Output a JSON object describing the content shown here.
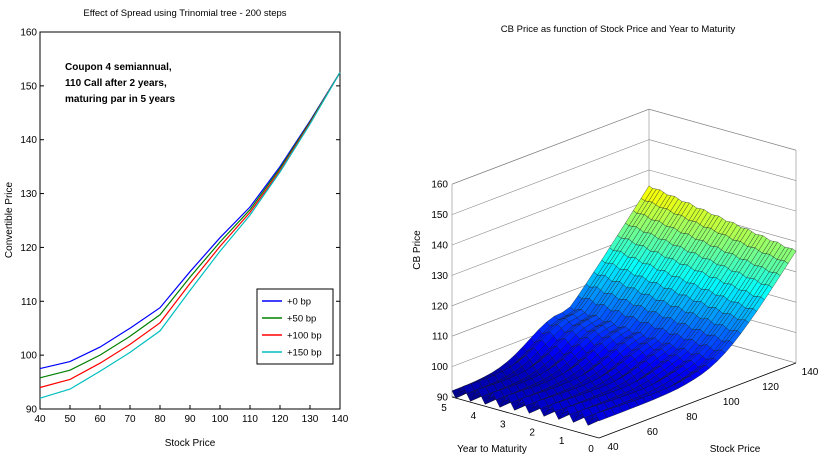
{
  "chart_data": [
    {
      "type": "line",
      "title": "Effect of Spread using Trinomial tree - 200 steps",
      "xlabel": "Stock Price",
      "ylabel": "Convertible Price",
      "xlim": [
        40,
        140
      ],
      "ylim": [
        90,
        160
      ],
      "xticks": [
        "40",
        "50",
        "60",
        "70",
        "80",
        "90",
        "100",
        "110",
        "120",
        "130",
        "140"
      ],
      "yticks": [
        "90",
        "100",
        "110",
        "120",
        "130",
        "140",
        "150",
        "160"
      ],
      "annotation": [
        "Coupon 4 semiannual,",
        "110 Call after 2 years,",
        "maturing par in 5 years"
      ],
      "legend_position": "lower-right",
      "x": [
        40,
        50,
        60,
        70,
        80,
        90,
        100,
        110,
        120,
        130,
        140
      ],
      "series": [
        {
          "name": "+0 bp",
          "color": "#0000ff",
          "values": [
            97.5,
            98.8,
            101.5,
            105.0,
            108.8,
            115.5,
            121.8,
            127.5,
            135.0,
            143.5,
            152.5
          ]
        },
        {
          "name": "+50 bp",
          "color": "#008000",
          "values": [
            95.8,
            97.2,
            100.0,
            103.5,
            107.5,
            114.5,
            121.0,
            127.0,
            134.7,
            143.3,
            152.5
          ]
        },
        {
          "name": "+100 bp",
          "color": "#ff0000",
          "values": [
            94.0,
            95.5,
            98.5,
            102.0,
            106.0,
            113.3,
            120.2,
            126.5,
            134.3,
            143.1,
            152.5
          ]
        },
        {
          "name": "+150 bp",
          "color": "#00bfbf",
          "values": [
            92.0,
            93.7,
            97.0,
            100.5,
            104.5,
            112.0,
            119.3,
            126.0,
            134.0,
            142.9,
            152.5
          ]
        }
      ]
    },
    {
      "type": "surface",
      "title": "CB Price as function of Stock Price and Year to Maturity",
      "xlabel": "Year to Maturity",
      "ylabel": "Stock Price",
      "zlabel": "CB Price",
      "xticks": [
        "5",
        "4",
        "3",
        "2",
        "1",
        "0"
      ],
      "yticks": [
        "40",
        "60",
        "80",
        "100",
        "120",
        "140"
      ],
      "zticks": [
        "90",
        "100",
        "110",
        "120",
        "130",
        "140",
        "150",
        "160"
      ],
      "xlim": [
        0,
        5
      ],
      "ylim": [
        40,
        140
      ],
      "zlim": [
        90,
        160
      ],
      "colormap": "jet"
    }
  ]
}
